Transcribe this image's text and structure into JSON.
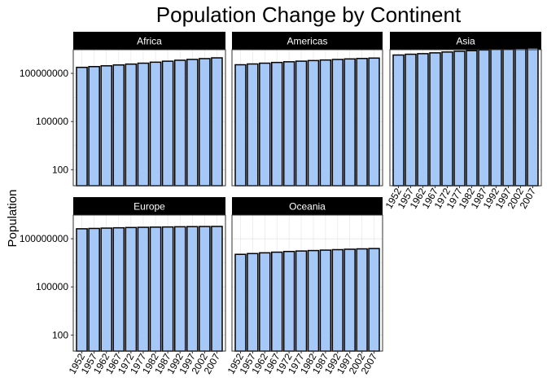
{
  "chart_data": {
    "type": "bar",
    "title": "Population Change by Continent",
    "xlabel": "",
    "ylabel": "Population",
    "y_scale": "log10",
    "ylim": [
      10,
      3000000000
    ],
    "y_ticks": [
      100,
      100000,
      100000000
    ],
    "y_tick_labels": [
      "100",
      "100000",
      "100000000"
    ],
    "categories": [
      "1952",
      "1957",
      "1962",
      "1967",
      "1972",
      "1977",
      "1982",
      "1987",
      "1992",
      "1997",
      "2002",
      "2007"
    ],
    "grid": true,
    "legend": "none",
    "colors": {
      "bar_fill": "#a6c8f7",
      "bar_stroke": "#000000",
      "strip": "#000000",
      "grid": "#e3e3e3",
      "border": "#333333"
    },
    "facets": [
      {
        "name": "Africa",
        "values": [
          237640501,
          264837738,
          296516865,
          335289489,
          379879541,
          433061021,
          499348587,
          574834110,
          659081517,
          743832984,
          833723916,
          929539692
        ]
      },
      {
        "name": "Americas",
        "values": [
          345152446,
          386953916,
          433270254,
          480746623,
          529384210,
          578067699,
          630290920,
          682753971,
          739274104,
          796900410,
          849772762,
          898871184
        ]
      },
      {
        "name": "Asia",
        "values": [
          1395357352,
          1562780599,
          1696357182,
          1905662900,
          2150972248,
          2384513556,
          2610135582,
          2871220762,
          3133292191,
          3383285500,
          3601802203,
          3811953827
        ]
      },
      {
        "name": "Europe",
        "values": [
          418120846,
          437890351,
          460355155,
          481178958,
          500635059,
          517164531,
          531266901,
          543094160,
          558142797,
          568944148,
          578223869,
          586098529
        ]
      },
      {
        "name": "Oceania",
        "values": [
          10686006,
          11941976,
          13283518,
          14600414,
          16106914,
          17239000,
          18394850,
          19574415,
          20919651,
          22241430,
          23454829,
          24549947
        ]
      }
    ]
  }
}
